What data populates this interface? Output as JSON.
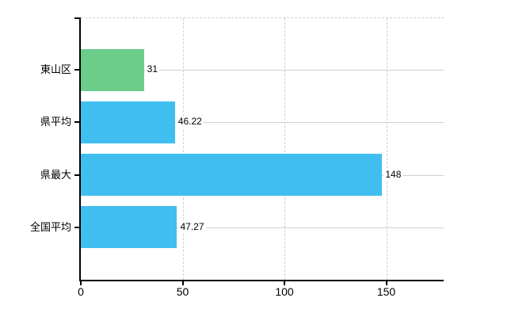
{
  "chart_data": {
    "type": "bar",
    "orientation": "horizontal",
    "title": "",
    "categories": [
      "東山区",
      "県平均",
      "県最大",
      "全国平均"
    ],
    "series": [
      {
        "name": "",
        "values": [
          31,
          46.22,
          148,
          47.27
        ]
      }
    ],
    "values": [
      31,
      46.22,
      148,
      47.27
    ],
    "value_labels": [
      "31",
      "46.22",
      "148",
      "47.27"
    ],
    "bar_colors": [
      "#6ccc8a",
      "#41bef0",
      "#41bef0",
      "#41bef0"
    ],
    "x_tick_labels": [
      "0",
      "50",
      "100",
      "150"
    ],
    "x_tick_values": [
      0,
      50,
      100,
      150
    ],
    "xlim": [
      0,
      178.2
    ],
    "xlabel": "",
    "ylabel": "",
    "legend": null,
    "grid": {
      "vertical_lines": "dashed",
      "horizontal_row_lines": "solid",
      "top_border": "dashed"
    },
    "colors": {
      "axis": "#000000",
      "text": "#000000",
      "grid_vertical": "#cfcfcf",
      "grid_horizontal": "#cdd3cd",
      "highlight_bar": "#6ccc8a",
      "default_bar": "#41bef0",
      "background": "#ffffff"
    }
  }
}
